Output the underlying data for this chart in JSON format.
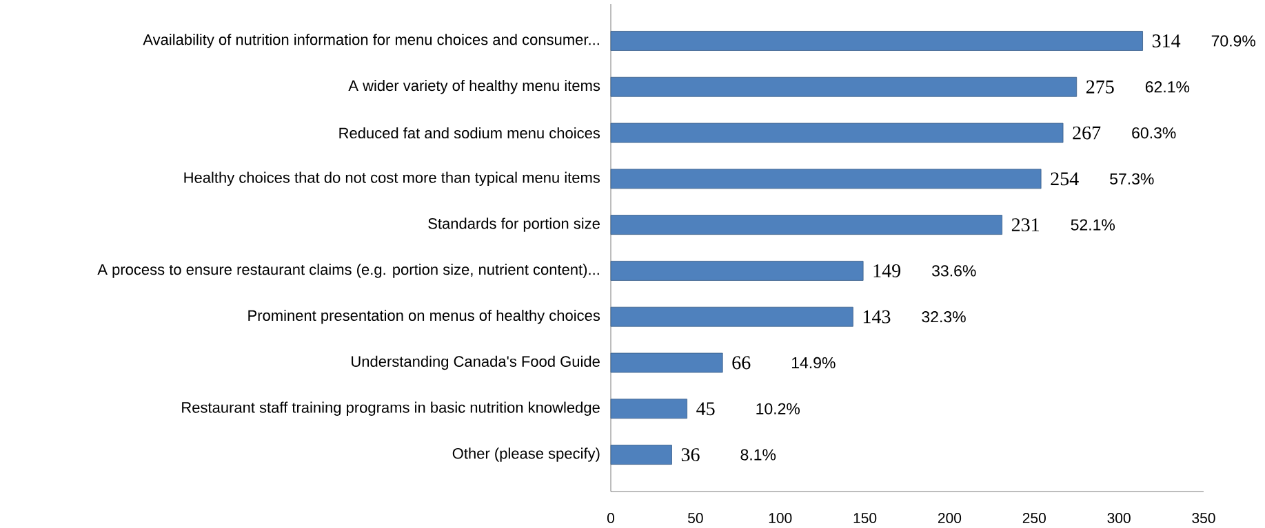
{
  "chart_data": {
    "type": "bar",
    "orientation": "horizontal",
    "categories": [
      "Availability of nutrition information for menu choices and consumer...",
      "A wider variety of healthy menu items",
      "Reduced fat and sodium menu choices",
      "Healthy choices that do not cost more than typical menu items",
      "Standards for portion size",
      "A process to ensure restaurant claims (e.g. portion size, nutrient content)...",
      "Prominent presentation on menus of healthy choices",
      "Understanding Canada's Food Guide",
      "Restaurant staff training programs in basic nutrition knowledge",
      "Other (please specify)"
    ],
    "values": [
      314,
      275,
      267,
      254,
      231,
      149,
      143,
      66,
      45,
      36
    ],
    "color": "#4f81bd",
    "data_labels": true,
    "xlim": [
      0,
      350
    ],
    "xticks": [
      0,
      50,
      100,
      150,
      200,
      250,
      300,
      350
    ],
    "annotations": [
      "70.9%",
      "62.1%",
      "60.3%",
      "57.3%",
      "52.1%",
      "33.6%",
      "32.3%",
      "14.9%",
      "10.2%",
      "8.1%"
    ]
  }
}
